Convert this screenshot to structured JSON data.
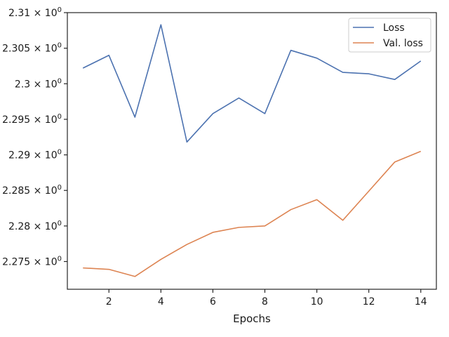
{
  "chart_data": {
    "type": "line",
    "title": "",
    "xlabel": "Epochs",
    "ylabel": "",
    "xlim": [
      0.4,
      14.6
    ],
    "ylim": [
      2.2711,
      2.31
    ],
    "x_ticks": [
      2,
      4,
      6,
      8,
      10,
      12,
      14
    ],
    "y_ticks": [
      {
        "value": 2.275,
        "mantissa": "2.275"
      },
      {
        "value": 2.28,
        "mantissa": "2.28"
      },
      {
        "value": 2.285,
        "mantissa": "2.285"
      },
      {
        "value": 2.29,
        "mantissa": "2.29"
      },
      {
        "value": 2.295,
        "mantissa": "2.295"
      },
      {
        "value": 2.3,
        "mantissa": "2.3"
      },
      {
        "value": 2.305,
        "mantissa": "2.305"
      },
      {
        "value": 2.31,
        "mantissa": "2.31"
      }
    ],
    "y_tick_suffix": "× 10",
    "y_tick_exponent": "0",
    "grid": false,
    "legend_position": "top-right",
    "x": [
      1,
      2,
      3,
      4,
      5,
      6,
      7,
      8,
      9,
      10,
      11,
      12,
      13,
      14
    ],
    "series": [
      {
        "name": "Loss",
        "color": "#4c72b0",
        "values": [
          2.3022,
          2.304,
          2.2953,
          2.3083,
          2.2918,
          2.2958,
          2.298,
          2.2958,
          2.3047,
          2.3036,
          2.3016,
          2.3014,
          2.3006,
          2.3032
        ]
      },
      {
        "name": "Val. loss",
        "color": "#dd8452",
        "values": [
          2.2741,
          2.2739,
          2.2729,
          2.2753,
          2.2774,
          2.2791,
          2.2798,
          2.28,
          2.2823,
          2.2837,
          2.2808,
          2.2849,
          2.289,
          2.2905
        ]
      }
    ]
  }
}
